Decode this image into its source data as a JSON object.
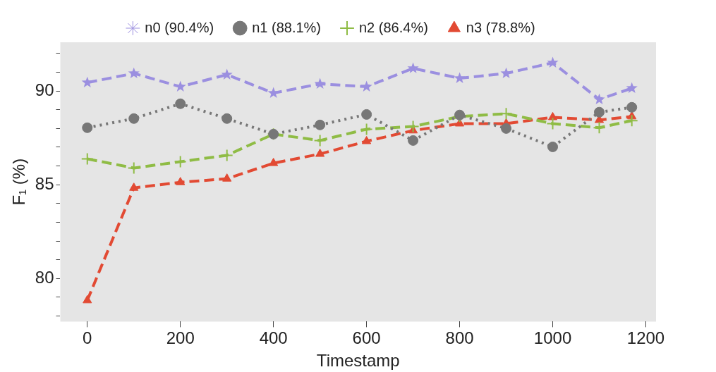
{
  "chart_data": {
    "type": "line",
    "xlabel": "Timestamp",
    "ylabel": "F₁ (%)",
    "x": [
      0,
      100,
      200,
      300,
      400,
      500,
      600,
      700,
      800,
      900,
      1000,
      1100,
      1170
    ],
    "xlim": [
      -58,
      1222
    ],
    "xticks": [
      0,
      200,
      400,
      600,
      800,
      1000,
      1200
    ],
    "ylim": [
      77.7,
      92.6
    ],
    "yticks": [
      {
        "value": 78,
        "label": null
      },
      {
        "value": 79,
        "label": null
      },
      80,
      {
        "value": 81,
        "label": null
      },
      {
        "value": 82,
        "label": null
      },
      {
        "value": 83,
        "label": null
      },
      {
        "value": 84,
        "label": null
      },
      85,
      {
        "value": 86,
        "label": null
      },
      {
        "value": 87,
        "label": null
      },
      {
        "value": 88,
        "label": null
      },
      {
        "value": 89,
        "label": null
      },
      90,
      {
        "value": 91,
        "label": null
      },
      {
        "value": 92,
        "label": null
      }
    ],
    "grid": false,
    "legend": "top",
    "series": [
      {
        "name": "n0 (90.4%)",
        "color": "#9b8fe0",
        "marker": "star",
        "line_style": "dashed",
        "values": [
          90.45,
          90.94,
          90.23,
          90.87,
          89.89,
          90.38,
          90.23,
          91.21,
          90.68,
          90.94,
          91.51,
          89.55,
          90.15
        ]
      },
      {
        "name": "n1 (88.1%)",
        "color": "#777777",
        "marker": "circle",
        "line_style": "dotted",
        "values": [
          88.04,
          88.53,
          89.32,
          88.53,
          87.7,
          88.19,
          88.75,
          87.36,
          88.72,
          88.0,
          87.02,
          88.87,
          89.13
        ]
      },
      {
        "name": "n2 (86.4%)",
        "color": "#8fbc45",
        "marker": "cross",
        "line_style": "dashed",
        "values": [
          86.38,
          85.89,
          86.23,
          86.57,
          87.7,
          87.36,
          87.96,
          88.11,
          88.64,
          88.79,
          88.26,
          88.04,
          88.42
        ]
      },
      {
        "name": "n3 (78.8%)",
        "color": "#e24a33",
        "marker": "triangle",
        "line_style": "dashed",
        "values": [
          78.83,
          84.83,
          85.13,
          85.32,
          86.15,
          86.64,
          87.32,
          87.89,
          88.26,
          88.26,
          88.6,
          88.45,
          88.64
        ]
      }
    ]
  }
}
